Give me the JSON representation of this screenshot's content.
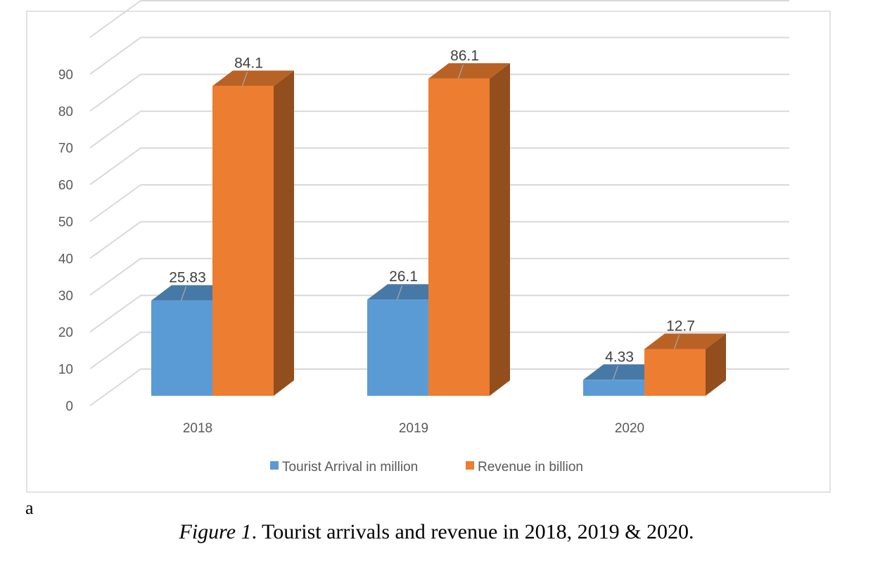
{
  "chart_data": {
    "type": "bar",
    "categories": [
      "2018",
      "2019",
      "2020"
    ],
    "series": [
      {
        "name": "Tourist Arrival in million",
        "values": [
          25.83,
          26.1,
          4.33
        ],
        "labels": [
          "25.83",
          "26.1",
          "4.33"
        ],
        "color": "#5B9BD5"
      },
      {
        "name": "Revenue in billion",
        "values": [
          84.1,
          86.1,
          12.7
        ],
        "labels": [
          "84.1",
          "86.1",
          "12.7"
        ],
        "color": "#ED7D31"
      }
    ],
    "yticks": [
      "0",
      "10",
      "20",
      "30",
      "40",
      "50",
      "60",
      "70",
      "80",
      "90"
    ],
    "ylim": [
      0,
      100
    ],
    "grid": true,
    "legend_position": "bottom",
    "three_d": true
  },
  "footnote": "a",
  "caption": {
    "figure_label": "Figure 1",
    "text": ". Tourist arrivals and revenue in 2018, 2019 & 2020."
  }
}
